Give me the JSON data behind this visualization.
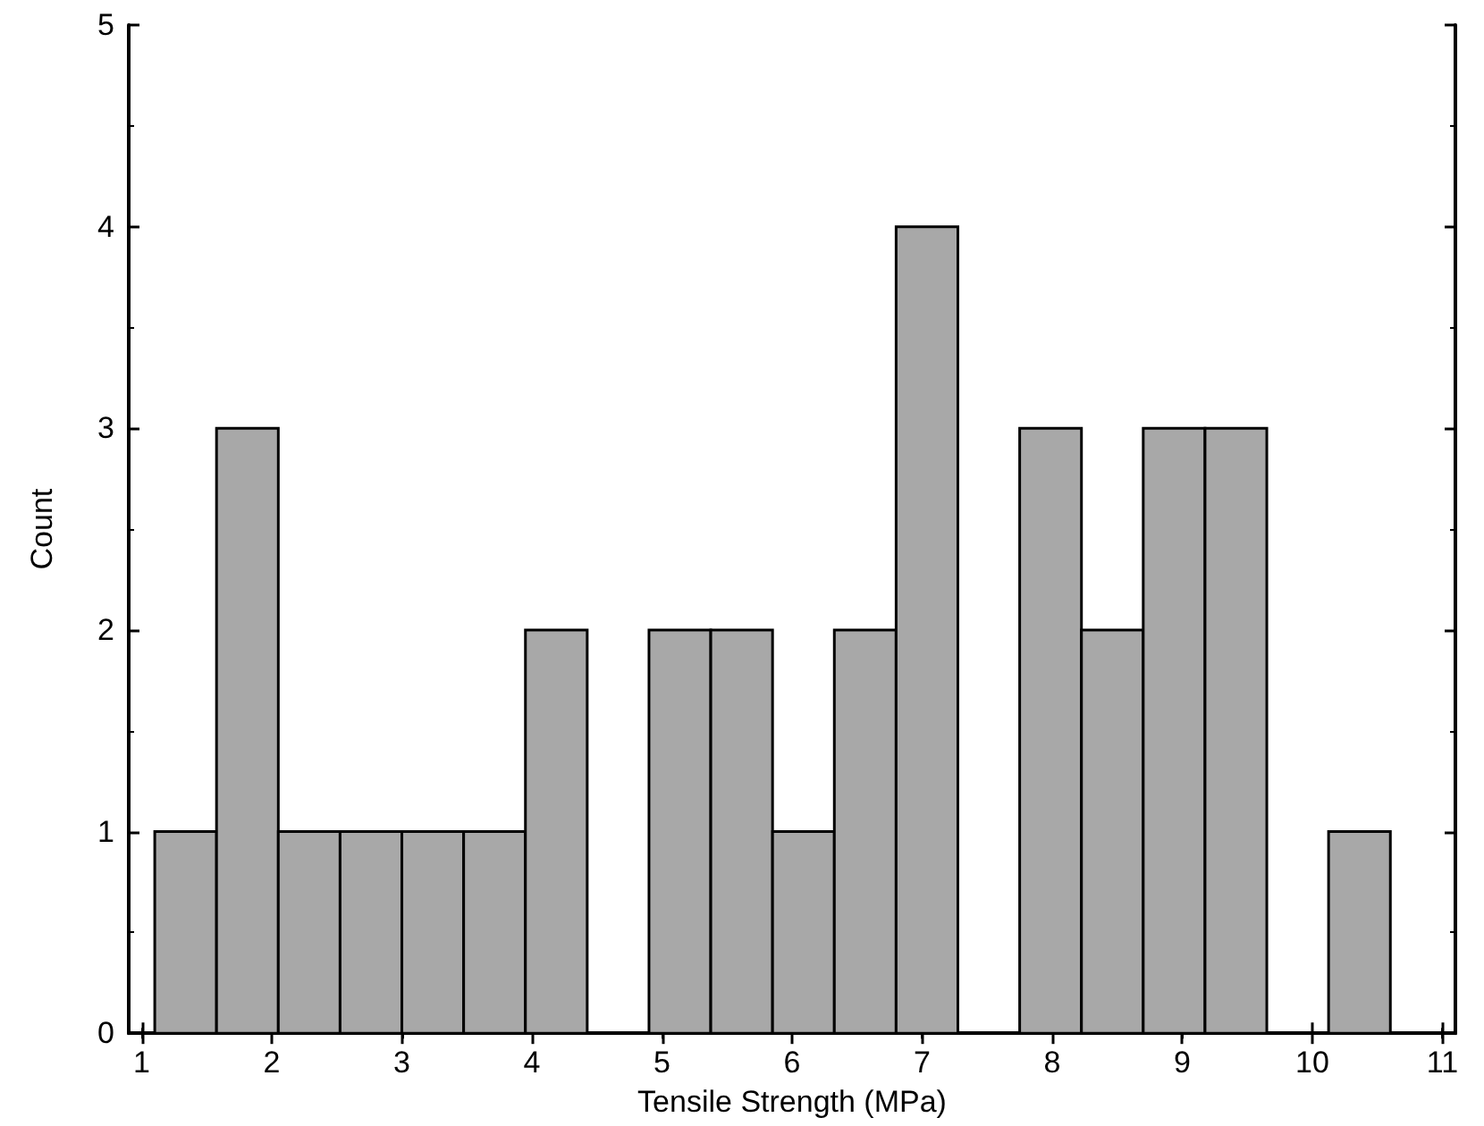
{
  "chart_data": {
    "type": "histogram",
    "xlabel": "Tensile Strength (MPa)",
    "ylabel": "Count",
    "bins": [
      1.1,
      1.575,
      2.05,
      2.525,
      3.0,
      3.475,
      3.95,
      4.425,
      4.9,
      5.375,
      5.85,
      6.325,
      6.8,
      7.275,
      7.75,
      8.225,
      8.7,
      9.175,
      9.65,
      10.125,
      10.6
    ],
    "values": [
      1,
      3,
      1,
      1,
      1,
      1,
      2,
      0,
      2,
      2,
      1,
      2,
      4,
      0,
      3,
      2,
      3,
      3,
      0,
      1
    ],
    "color": "#a8a8a8",
    "xlim": [
      0.9,
      11.1
    ],
    "xticks": [
      1,
      2,
      3,
      4,
      5,
      6,
      7,
      8,
      9,
      10,
      11
    ],
    "ylim": [
      0,
      5
    ],
    "yticks": [
      0,
      1,
      2,
      3,
      4,
      5
    ],
    "grid": false
  }
}
